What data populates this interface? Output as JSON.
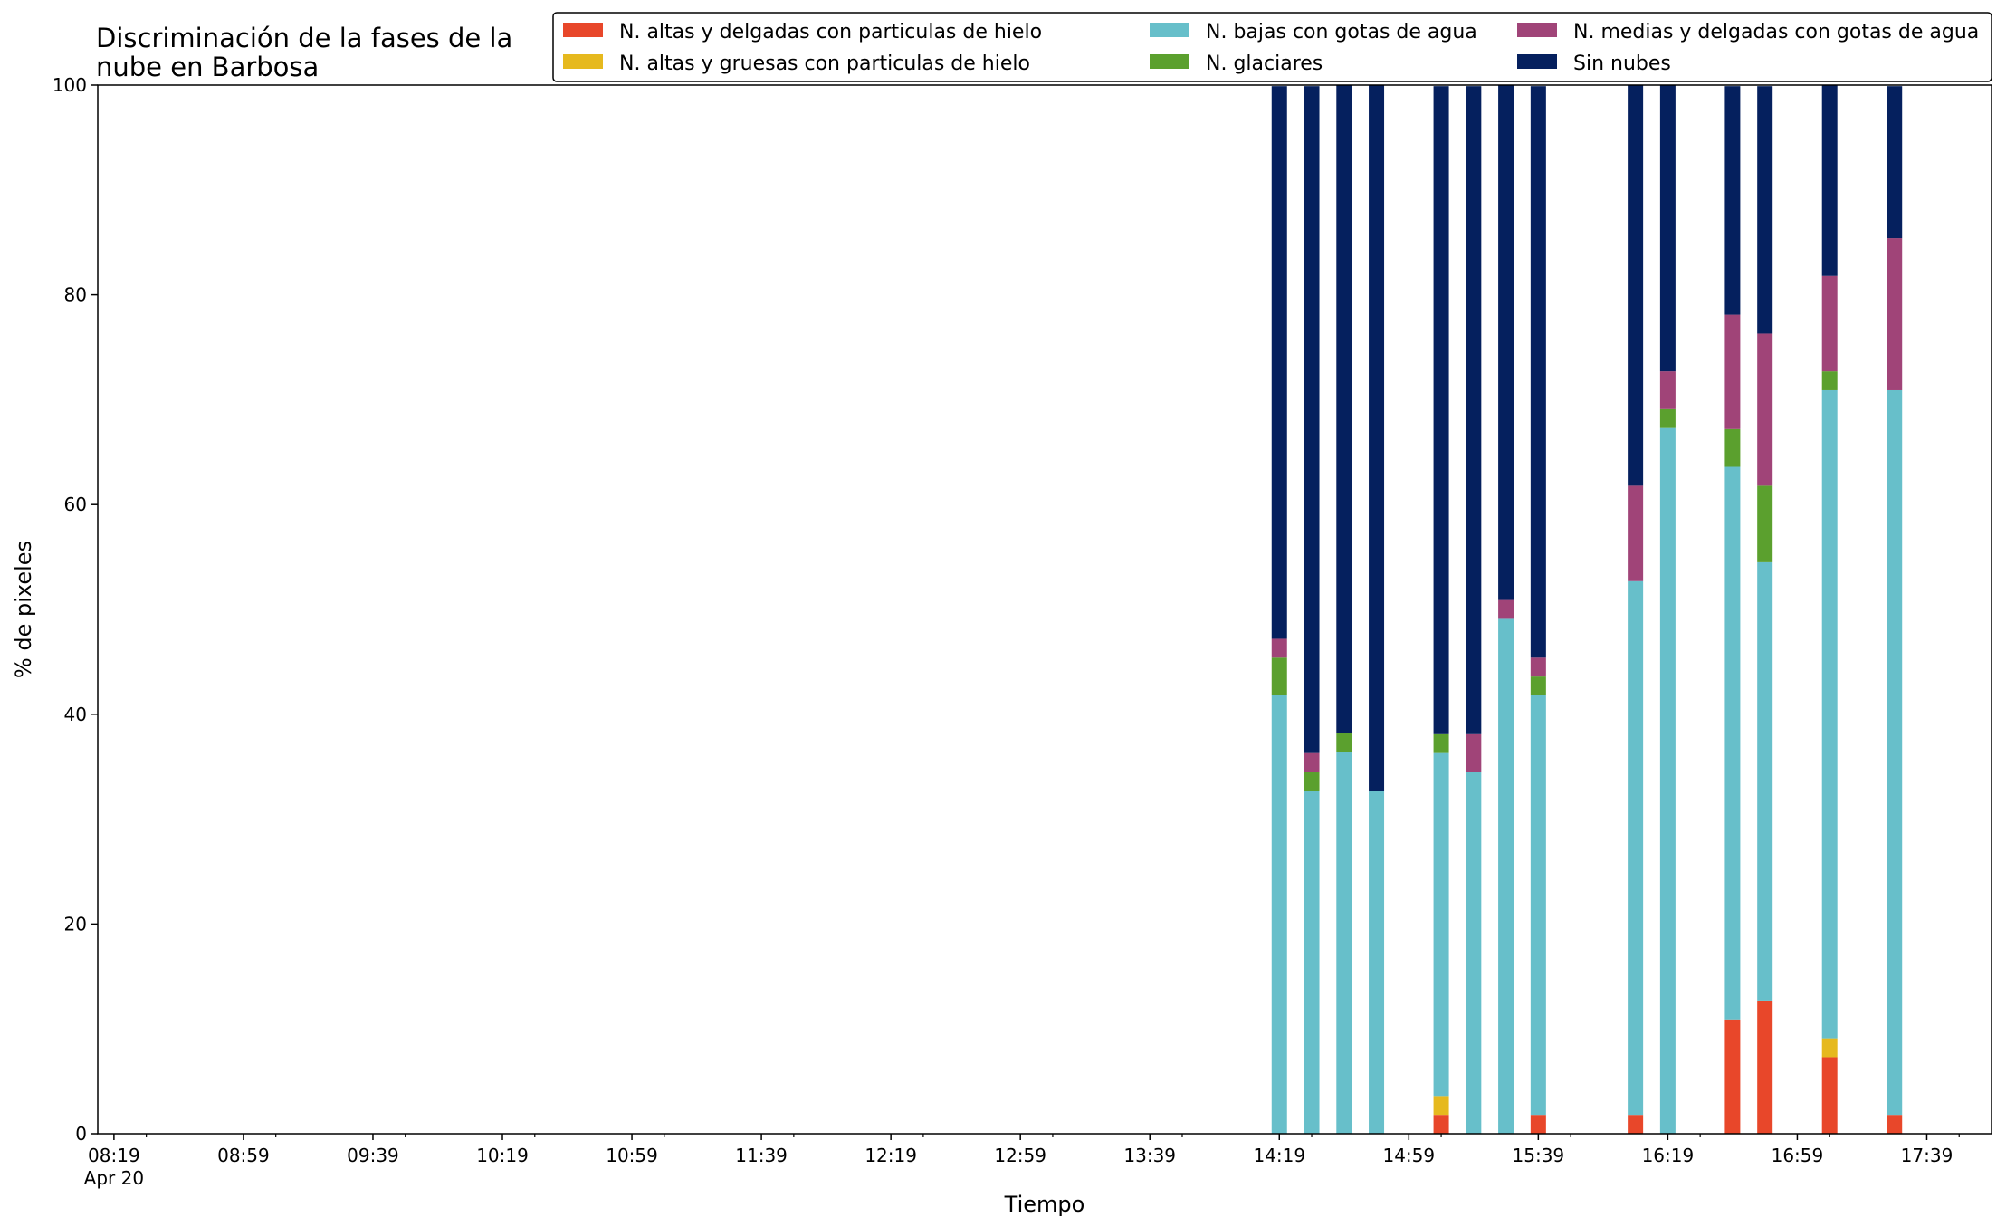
{
  "chart_data": {
    "type": "bar",
    "stacked": true,
    "title_lines": [
      "Discriminación de la fases de la",
      "nube en Barbosa"
    ],
    "xlabel": "Tiempo",
    "ylabel": "% de pixeles",
    "ylim": [
      0,
      100
    ],
    "yticks": [
      "0",
      "20",
      "40",
      "60",
      "80",
      "100"
    ],
    "grid": false,
    "legend_position": "top-right",
    "xlim_minutes": [
      "08:14",
      "17:59"
    ],
    "x_major_ticks": [
      {
        "time": "08:19",
        "label": "08:19",
        "sublabel": "Apr 20"
      },
      {
        "time": "08:59",
        "label": "08:59"
      },
      {
        "time": "09:39",
        "label": "09:39"
      },
      {
        "time": "10:19",
        "label": "10:19"
      },
      {
        "time": "10:59",
        "label": "10:59"
      },
      {
        "time": "11:39",
        "label": "11:39"
      },
      {
        "time": "12:19",
        "label": "12:19"
      },
      {
        "time": "12:59",
        "label": "12:59"
      },
      {
        "time": "13:39",
        "label": "13:39"
      },
      {
        "time": "14:19",
        "label": "14:19"
      },
      {
        "time": "14:59",
        "label": "14:59"
      },
      {
        "time": "15:39",
        "label": "15:39"
      },
      {
        "time": "16:19",
        "label": "16:19"
      },
      {
        "time": "16:59",
        "label": "16:59"
      },
      {
        "time": "17:39",
        "label": "17:39"
      }
    ],
    "x": [
      "14:19",
      "14:29",
      "14:39",
      "14:49",
      "15:09",
      "15:19",
      "15:29",
      "15:39",
      "16:09",
      "16:19",
      "16:39",
      "16:49",
      "17:09",
      "17:29"
    ],
    "series": [
      {
        "name": "N. altas y delgadas con particulas de hielo",
        "color": "#e8472a",
        "values": [
          0,
          0,
          0,
          0,
          1.8,
          0,
          0,
          1.8,
          1.8,
          0,
          10.9,
          12.7,
          7.3,
          1.8
        ]
      },
      {
        "name": "N. altas y gruesas con particulas de hielo",
        "color": "#e6b91e",
        "values": [
          0,
          0,
          0,
          0,
          1.8,
          0,
          0,
          0,
          0,
          0,
          0,
          0,
          1.8,
          0
        ]
      },
      {
        "name": "N. bajas con gotas de agua",
        "color": "#67bfca",
        "values": [
          41.8,
          32.7,
          36.4,
          32.7,
          32.7,
          34.5,
          49.1,
          40.0,
          50.9,
          67.3,
          52.7,
          41.8,
          61.8,
          69.1
        ]
      },
      {
        "name": "N. glaciares",
        "color": "#5ba02e",
        "values": [
          3.6,
          1.8,
          1.8,
          0,
          1.8,
          0,
          0,
          1.8,
          0,
          1.8,
          3.6,
          7.3,
          1.8,
          0
        ]
      },
      {
        "name": "N. medias y delgadas con gotas de agua",
        "color": "#a04478",
        "values": [
          1.8,
          1.8,
          0,
          0,
          0,
          3.6,
          1.8,
          1.8,
          9.1,
          3.6,
          10.9,
          14.5,
          9.1,
          14.5
        ]
      },
      {
        "name": "Sin nubes",
        "color": "#05205e",
        "values": [
          52.7,
          63.6,
          61.8,
          67.3,
          61.8,
          61.8,
          49.1,
          54.5,
          38.2,
          27.3,
          21.8,
          23.6,
          18.2,
          14.5
        ]
      }
    ]
  }
}
